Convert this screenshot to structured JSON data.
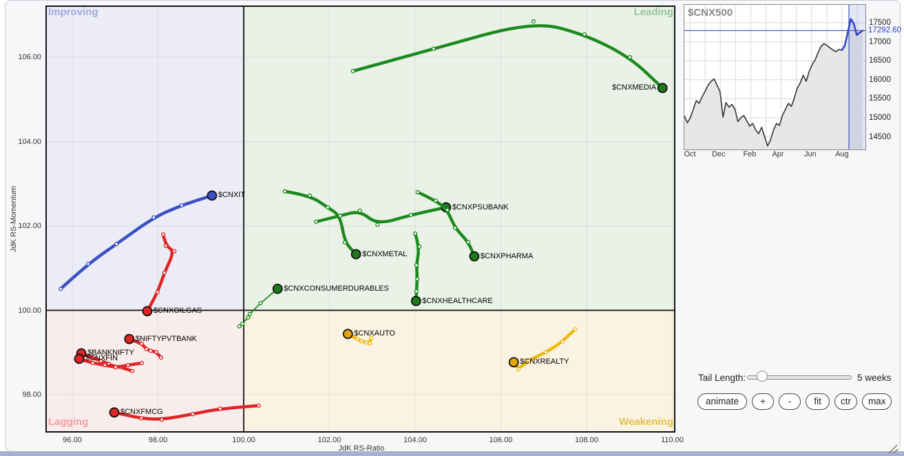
{
  "controls": {
    "tail_length_label": "Tail Length:",
    "tail_length_value": "5 weeks",
    "buttons": [
      "animate",
      "+",
      "-",
      "fit",
      "ctr",
      "max"
    ]
  },
  "minichart": {
    "title": "$CNX500",
    "current_label": "17292.60",
    "y_labels": [
      "17500",
      "17000",
      "16500",
      "16000",
      "15500",
      "15000",
      "14500"
    ],
    "x_labels": [
      "Oct",
      "Dec",
      "Feb",
      "Apr",
      "Jun",
      "Aug"
    ]
  },
  "rrg": {
    "x_axis_label": "JdK RS-Ratio",
    "y_axis_label": "JdK RS-Momentum",
    "x_tick_labels": [
      "96.00",
      "98.00",
      "100.00",
      "102.00",
      "104.00",
      "106.00",
      "108.00",
      "110.00"
    ],
    "y_tick_labels": [
      "106.00",
      "104.00",
      "102.00",
      "100.00",
      "98.00"
    ],
    "quadrants": {
      "improving": {
        "label": "Improving",
        "text_color": "#a0aade",
        "bg": "#ececf6"
      },
      "leading": {
        "label": "Leading",
        "text_color": "#97c497",
        "bg": "#eaf2e8"
      },
      "lagging": {
        "label": "Lagging",
        "text_color": "#f0a0a0",
        "bg": "#f9ecec"
      },
      "weakening": {
        "label": "Weakening",
        "text_color": "#e5be4a",
        "bg": "#faf3e2"
      }
    },
    "colors": {
      "blue": {
        "line": "#3a50c4",
        "dot": "#3a50c4"
      },
      "green": {
        "line": "#1c8a1c",
        "dot": "#1d7a1d"
      },
      "red": {
        "line": "#e02424",
        "dot": "#e02424"
      },
      "yellow": {
        "line": "#edb90f",
        "dot": "#e2a50a"
      }
    }
  },
  "chart_data": [
    {
      "type": "scatter",
      "subtype": "rrg-tails",
      "xlabel": "JdK RS-Ratio",
      "ylabel": "JdK RS-Momentum",
      "xlim": [
        95.37,
        110.07
      ],
      "ylim": [
        97.1,
        107.22
      ],
      "x_ticks": [
        96,
        98,
        100,
        102,
        104,
        106,
        108,
        110
      ],
      "y_ticks": [
        106,
        104,
        102,
        100,
        98
      ],
      "series": [
        {
          "symbol": "$CNXIT",
          "group": "blue",
          "label_side": "right",
          "tail": [
            [
              95.73,
              100.51
            ],
            [
              96.37,
              101.1
            ],
            [
              97.03,
              101.57
            ],
            [
              97.9,
              102.2
            ],
            [
              98.55,
              102.49
            ],
            [
              99.26,
              102.72
            ]
          ]
        },
        {
          "symbol": "$CNXMEDIA",
          "group": "green",
          "label_side": "left",
          "tail": [
            [
              102.55,
              105.67
            ],
            [
              104.43,
              106.2
            ],
            [
              106.76,
              106.85
            ],
            [
              107.95,
              106.54
            ],
            [
              109.01,
              106.0
            ],
            [
              109.77,
              105.27
            ]
          ]
        },
        {
          "symbol": "$CNXPSUBANK",
          "group": "green",
          "label_side": "right",
          "tail": [
            [
              101.69,
              102.1
            ],
            [
              102.25,
              102.24
            ],
            [
              102.71,
              102.36
            ],
            [
              103.12,
              102.03
            ],
            [
              103.9,
              102.26
            ],
            [
              104.72,
              102.44
            ]
          ]
        },
        {
          "symbol": "$CNXMETAL",
          "group": "green",
          "label_side": "right",
          "tail": [
            [
              100.96,
              102.82
            ],
            [
              101.54,
              102.72
            ],
            [
              101.96,
              102.44
            ],
            [
              102.25,
              102.24
            ],
            [
              102.36,
              101.61
            ],
            [
              102.62,
              101.33
            ]
          ]
        },
        {
          "symbol": "$CNXPHARMA",
          "group": "green",
          "label_side": "right",
          "tail": [
            [
              104.06,
              102.8
            ],
            [
              104.48,
              102.6
            ],
            [
              104.75,
              102.38
            ],
            [
              104.93,
              101.95
            ],
            [
              105.24,
              101.62
            ],
            [
              105.38,
              101.28
            ]
          ]
        },
        {
          "symbol": "$CNXHEALTHCARE",
          "group": "green",
          "label_side": "right",
          "tail": [
            [
              104.0,
              101.82
            ],
            [
              104.1,
              101.51
            ],
            [
              104.03,
              101.07
            ],
            [
              104.05,
              100.74
            ],
            [
              104.03,
              100.45
            ],
            [
              104.02,
              100.22
            ]
          ]
        },
        {
          "symbol": "$CNXCONSUMERDURABLES",
          "group": "green",
          "label_side": "right",
          "thin": true,
          "tail": [
            [
              99.9,
              99.62
            ],
            [
              99.97,
              99.68
            ],
            [
              100.1,
              99.83
            ],
            [
              100.14,
              99.91
            ],
            [
              100.39,
              100.17
            ],
            [
              100.79,
              100.51
            ]
          ]
        },
        {
          "symbol": "$CNXOILGAS",
          "group": "red",
          "label_side": "right",
          "tail": [
            [
              98.12,
              101.8
            ],
            [
              98.18,
              101.53
            ],
            [
              98.38,
              101.4
            ],
            [
              98.15,
              100.89
            ],
            [
              97.99,
              100.43
            ],
            [
              97.75,
              99.98
            ]
          ]
        },
        {
          "symbol": "$NIFTYPVTBANK",
          "group": "red",
          "label_side": "right",
          "tail": [
            [
              98.07,
              98.88
            ],
            [
              97.96,
              99.01
            ],
            [
              97.83,
              99.04
            ],
            [
              97.73,
              99.08
            ],
            [
              97.62,
              99.21
            ],
            [
              97.33,
              99.32
            ]
          ]
        },
        {
          "symbol": "$BANKNIFTY",
          "group": "red",
          "label_side": "right",
          "tail": [
            [
              97.4,
              98.56
            ],
            [
              97.14,
              98.65
            ],
            [
              96.98,
              98.67
            ],
            [
              96.85,
              98.73
            ],
            [
              96.67,
              98.8
            ],
            [
              96.21,
              98.98
            ]
          ]
        },
        {
          "symbol": "$CNXFIN",
          "group": "red",
          "label_side": "right",
          "tail": [
            [
              97.62,
              98.75
            ],
            [
              97.3,
              98.7
            ],
            [
              97.01,
              98.65
            ],
            [
              96.76,
              98.7
            ],
            [
              96.48,
              98.75
            ],
            [
              96.16,
              98.85
            ]
          ]
        },
        {
          "symbol": "$CNXFMCG",
          "group": "red",
          "label_side": "right",
          "tail": [
            [
              100.35,
              97.74
            ],
            [
              99.45,
              97.67
            ],
            [
              98.81,
              97.54
            ],
            [
              98.09,
              97.41
            ],
            [
              97.61,
              97.44
            ],
            [
              96.98,
              97.58
            ]
          ]
        },
        {
          "symbol": "$CNXAUTO",
          "group": "yellow",
          "label_side": "right",
          "tail": [
            [
              102.97,
              99.35
            ],
            [
              102.94,
              99.22
            ],
            [
              102.86,
              99.24
            ],
            [
              102.75,
              99.27
            ],
            [
              102.65,
              99.32
            ],
            [
              102.43,
              99.44
            ]
          ]
        },
        {
          "symbol": "$CNXREALTY",
          "group": "yellow",
          "label_side": "right",
          "tail": [
            [
              107.73,
              99.55
            ],
            [
              107.44,
              99.26
            ],
            [
              107.05,
              99.0
            ],
            [
              106.65,
              98.82
            ],
            [
              106.41,
              98.6
            ],
            [
              106.3,
              98.77
            ]
          ]
        }
      ]
    },
    {
      "type": "area",
      "title": "$CNX500",
      "x_labels": [
        "Oct",
        "Dec",
        "Feb",
        "Apr",
        "Jun",
        "Aug"
      ],
      "y_ticks": [
        17500,
        17000,
        16500,
        16000,
        15500,
        15000,
        14500
      ],
      "current_value": 17292.6,
      "highlight_from_index": 53,
      "values": [
        15050,
        14870,
        15000,
        15220,
        15450,
        15380,
        15560,
        15700,
        15860,
        15960,
        16020,
        15860,
        15690,
        15020,
        15400,
        15280,
        15350,
        15230,
        14900,
        15000,
        15060,
        14920,
        14780,
        14850,
        14680,
        14580,
        14750,
        14500,
        14260,
        14420,
        14680,
        14850,
        14800,
        15060,
        15220,
        15380,
        15300,
        15520,
        15780,
        15920,
        16120,
        15960,
        16220,
        16400,
        16520,
        16720,
        16880,
        16950,
        16900,
        16840,
        16780,
        16740,
        16800,
        16780,
        16900,
        17250,
        17600,
        17480,
        17180,
        17240,
        17292.6
      ]
    }
  ]
}
